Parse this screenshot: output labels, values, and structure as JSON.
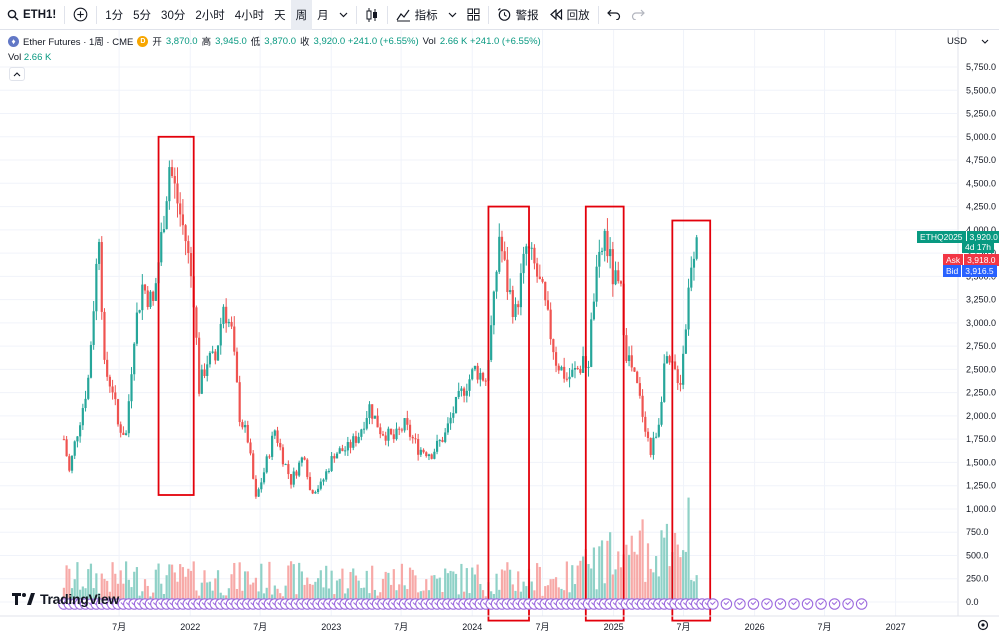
{
  "toolbar": {
    "symbol": "ETH1!",
    "intervals": [
      "1分",
      "5分",
      "30分",
      "2小时",
      "4小时",
      "天",
      "周",
      "月"
    ],
    "active_interval": "周",
    "indicators_label": "指标",
    "alert_label": "警报",
    "replay_label": "回放",
    "currency": "USD"
  },
  "legend": {
    "name": "Ether Futures · 1周 · CME",
    "badge": "D",
    "ohlc": [
      {
        "label": "开",
        "value": "3,870.0"
      },
      {
        "label": "高",
        "value": "3,945.0"
      },
      {
        "label": "低",
        "value": "3,870.0"
      },
      {
        "label": "收",
        "value": "3,920.0 +241.0 (+6.55%)"
      }
    ],
    "vol_label": "Vol",
    "vol_value": "2.66 K +241.0 (+6.55%)",
    "vol_short": "2.66 K"
  },
  "price_tags": {
    "contract": "ETHQ2025",
    "last": "3,920.0",
    "countdown": "4d 17h",
    "ask_label": "Ask",
    "ask": "3,918.0",
    "bid_label": "Bid",
    "bid": "3,916.5"
  },
  "watermark": "TradingView",
  "colors": {
    "up": "#26a69a",
    "down": "#ef5350",
    "up_vol": "#8fd1c7",
    "down_vol": "#f7a9a7",
    "highlight": "#e3000b",
    "marker": "#9c6ade",
    "ask": "#f23645",
    "bid": "#2962ff",
    "last": "#089981"
  },
  "chart_data": {
    "type": "candlestick",
    "price_axis_ticks": [
      "5,750.0",
      "5,500.0",
      "5,250.0",
      "5,000.0",
      "4,750.0",
      "4,500.0",
      "4,250.0",
      "4,000.0",
      "3,750.0",
      "3,500.0",
      "3,250.0",
      "3,000.0",
      "2,750.0",
      "2,500.0",
      "2,250.0",
      "2,000.0",
      "1,750.0",
      "1,500.0",
      "1,250.0",
      "1,000.0",
      "750.0",
      "500.0",
      "250.0",
      "0.0"
    ],
    "time_axis_ticks": [
      "7月",
      "2022",
      "7月",
      "2023",
      "7月",
      "2024",
      "7月",
      "2025",
      "7月",
      "2026",
      "7月",
      "2027"
    ],
    "ylim": [
      0,
      5900
    ],
    "close_path": [
      [
        "2021-02-08",
        1750
      ],
      [
        "2021-02-22",
        1400
      ],
      [
        "2021-03-08",
        1700
      ],
      [
        "2021-03-29",
        2100
      ],
      [
        "2021-04-12",
        2400
      ],
      [
        "2021-05-10",
        4000
      ],
      [
        "2021-05-24",
        2500
      ],
      [
        "2021-06-14",
        2300
      ],
      [
        "2021-06-28",
        1900
      ],
      [
        "2021-07-19",
        1800
      ],
      [
        "2021-08-09",
        2900
      ],
      [
        "2021-08-30",
        3400
      ],
      [
        "2021-09-27",
        3200
      ],
      [
        "2021-10-18",
        3900
      ],
      [
        "2021-11-08",
        4700
      ],
      [
        "2021-11-29",
        4300
      ],
      [
        "2021-12-20",
        3900
      ],
      [
        "2022-01-10",
        3300
      ],
      [
        "2022-01-24",
        2300
      ],
      [
        "2022-02-14",
        2600
      ],
      [
        "2022-03-07",
        2600
      ],
      [
        "2022-03-28",
        3200
      ],
      [
        "2022-04-18",
        2900
      ],
      [
        "2022-05-09",
        2000
      ],
      [
        "2022-05-30",
        1750
      ],
      [
        "2022-06-20",
        1100
      ],
      [
        "2022-07-11",
        1400
      ],
      [
        "2022-08-08",
        1850
      ],
      [
        "2022-08-29",
        1550
      ],
      [
        "2022-09-19",
        1300
      ],
      [
        "2022-10-24",
        1600
      ],
      [
        "2022-11-07",
        1200
      ],
      [
        "2022-12-05",
        1250
      ],
      [
        "2023-01-09",
        1600
      ],
      [
        "2023-02-13",
        1650
      ],
      [
        "2023-03-13",
        1800
      ],
      [
        "2023-04-10",
        2100
      ],
      [
        "2023-05-08",
        1850
      ],
      [
        "2023-06-12",
        1750
      ],
      [
        "2023-07-10",
        1900
      ],
      [
        "2023-08-14",
        1650
      ],
      [
        "2023-09-18",
        1600
      ],
      [
        "2023-10-23",
        1800
      ],
      [
        "2023-11-13",
        2050
      ],
      [
        "2023-12-11",
        2300
      ],
      [
        "2024-01-08",
        2500
      ],
      [
        "2024-02-05",
        2400
      ],
      [
        "2024-02-26",
        3200
      ],
      [
        "2024-03-11",
        3950
      ],
      [
        "2024-04-01",
        3400
      ],
      [
        "2024-04-22",
        3100
      ],
      [
        "2024-05-20",
        3800
      ],
      [
        "2024-06-10",
        3600
      ],
      [
        "2024-07-01",
        3300
      ],
      [
        "2024-08-05",
        2600
      ],
      [
        "2024-09-02",
        2400
      ],
      [
        "2024-09-30",
        2500
      ],
      [
        "2024-10-28",
        2600
      ],
      [
        "2024-11-11",
        3300
      ],
      [
        "2024-12-09",
        3950
      ],
      [
        "2024-12-30",
        3500
      ],
      [
        "2025-01-20",
        3300
      ],
      [
        "2025-02-03",
        2700
      ],
      [
        "2025-03-03",
        2300
      ],
      [
        "2025-03-24",
        1900
      ],
      [
        "2025-04-07",
        1600
      ],
      [
        "2025-04-28",
        1950
      ],
      [
        "2025-05-12",
        2550
      ],
      [
        "2025-06-02",
        2500
      ],
      [
        "2025-06-23",
        2400
      ],
      [
        "2025-07-07",
        3000
      ],
      [
        "2025-07-21",
        3700
      ],
      [
        "2025-08-04",
        3920
      ]
    ],
    "highlight_boxes": [
      {
        "x0": "2021-10-11",
        "x1": "2022-01-10",
        "y0": 1150,
        "y1": 5000
      },
      {
        "x0": "2024-02-12",
        "x1": "2024-05-27",
        "y0": -200,
        "y1": 4250
      },
      {
        "x0": "2024-10-21",
        "x1": "2025-01-27",
        "y0": -200,
        "y1": 4250
      },
      {
        "x0": "2025-06-02",
        "x1": "2025-09-08",
        "y0": -200,
        "y1": 4100
      }
    ],
    "marker_range": [
      "2021-02-08",
      "2026-10-26"
    ],
    "grid": true
  }
}
